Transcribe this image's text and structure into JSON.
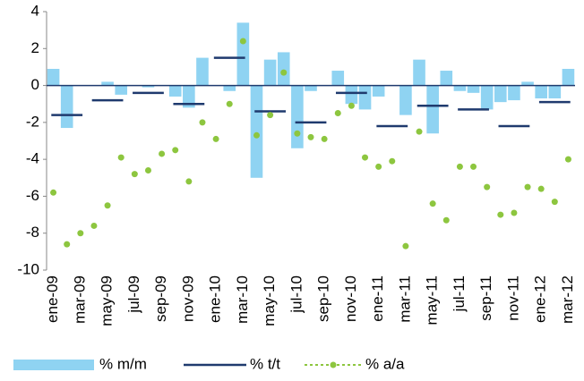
{
  "chart_data": {
    "type": "bar",
    "categories": [
      "ene-09",
      null,
      "mar-09",
      null,
      "may-09",
      null,
      "jul-09",
      null,
      "sep-09",
      null,
      "nov-09",
      null,
      "ene-10",
      null,
      "mar-10",
      null,
      "may-10",
      null,
      "jul-10",
      null,
      "sep-10",
      null,
      "nov-10",
      null,
      "ene-11",
      null,
      "mar-11",
      null,
      "may-11",
      null,
      "jul-11",
      null,
      "sep-11",
      null,
      "nov-11",
      null,
      "ene-12",
      null,
      "mar-12"
    ],
    "series": [
      {
        "name": "% m/m",
        "type": "bar",
        "color": "#8fd3f2",
        "values": [
          0.9,
          -2.3,
          0,
          0,
          0.2,
          -0.5,
          0,
          -0.1,
          0,
          -0.6,
          -1.2,
          1.5,
          0,
          -0.3,
          3.4,
          -5.0,
          1.4,
          1.8,
          -3.4,
          -0.3,
          0,
          0.8,
          -1.0,
          -1.3,
          -0.6,
          0,
          -1.6,
          1.4,
          -2.6,
          0.8,
          -0.3,
          -0.4,
          -1.3,
          -0.9,
          -0.8,
          0.2,
          -0.7,
          -0.7,
          0.9
        ]
      },
      {
        "name": "% t/t",
        "type": "step",
        "color": "#1f3a6e",
        "values": [
          null,
          -1.6,
          null,
          null,
          -0.8,
          null,
          null,
          -0.4,
          null,
          null,
          -1.0,
          null,
          null,
          1.5,
          null,
          null,
          -1.4,
          null,
          null,
          -2.0,
          null,
          null,
          -0.4,
          null,
          null,
          -2.2,
          null,
          null,
          -1.1,
          null,
          null,
          -1.3,
          null,
          null,
          -2.2,
          null,
          null,
          -0.9,
          null
        ]
      },
      {
        "name": "% a/a",
        "type": "line",
        "color": "#8dc63f",
        "values": [
          -5.8,
          -8.6,
          -8.0,
          -7.6,
          -6.5,
          -3.9,
          -4.8,
          -4.6,
          -3.7,
          -3.5,
          -5.2,
          -2.0,
          -2.9,
          -1.0,
          2.4,
          -2.7,
          -1.6,
          0.7,
          -2.6,
          -2.8,
          -2.9,
          -1.5,
          -1.1,
          -3.9,
          -4.4,
          -4.1,
          -8.7,
          -2.5,
          -6.4,
          -7.3,
          -4.4,
          -4.4,
          -5.5,
          -7.0,
          -6.9,
          -5.5,
          -5.6,
          -6.3,
          -4.0
        ]
      }
    ],
    "ylim": [
      -10,
      4
    ],
    "yticks": [
      -10,
      -8,
      -6,
      -4,
      -2,
      0,
      2,
      4
    ],
    "legend": "bottom"
  }
}
